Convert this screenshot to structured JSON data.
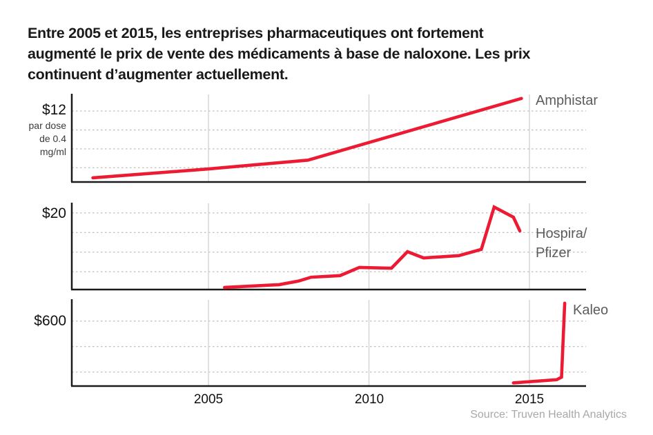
{
  "title": {
    "lines": [
      "Entre 2005 et 2015, les entreprises pharmaceutiques ont fortement",
      "augmenté le prix de vente des médicaments à base de naloxone. Les prix",
      "continuent d’augmenter actuellement."
    ]
  },
  "x_axis": {
    "tick_labels": [
      "2005",
      "2010",
      "2015"
    ]
  },
  "source": "Source: Truven Health Analytics",
  "colors": {
    "line_red": "#ed1a33",
    "series_label": "#5c5c5c",
    "title_text": "#191919",
    "axis": "#1a1a1a",
    "dashed_gridline": "#c3c3c3",
    "year_gridline": "#d6d6d6",
    "tick_label": "#111111",
    "source_text": "#a8a8a8"
  },
  "chart_data": [
    {
      "type": "line",
      "series_label": "Amphistar",
      "y_axis_label": "$12",
      "y_axis_sublabel_lines": [
        "par dose",
        "de 0.4",
        "mg/ml"
      ],
      "y_gridline_values": [
        3,
        6,
        9,
        12
      ],
      "x_gridline_years": [
        2005,
        2010,
        2015
      ],
      "x_years": [
        2001.4,
        2005,
        2008.1,
        2014.75
      ],
      "values": [
        1.4,
        2.8,
        4.2,
        14.0
      ],
      "xlim": [
        2000.7,
        2016.8
      ],
      "ylim": [
        0,
        14.7
      ],
      "grid": "dashed-horizontal, solid vertical at 5-year marks",
      "legend_position": "right-of-line-end"
    },
    {
      "type": "line",
      "series_label": "Hospira/Pfizer",
      "series_label_lines": [
        "Hospira/",
        "Pfizer"
      ],
      "y_axis_label": "$20",
      "y_gridline_values": [
        5,
        10,
        15,
        20
      ],
      "x_gridline_years": [
        2005,
        2010,
        2015
      ],
      "x_years": [
        2005.5,
        2007.2,
        2007.8,
        2008.2,
        2009.1,
        2009.7,
        2010.7,
        2011.2,
        2011.7,
        2012.8,
        2013.5,
        2013.9,
        2014.5,
        2014.7
      ],
      "values": [
        1.0,
        1.7,
        2.6,
        3.6,
        4.0,
        6.1,
        5.9,
        10.1,
        8.5,
        9.1,
        10.7,
        21.5,
        18.9,
        15.4
      ],
      "xlim": [
        2000.7,
        2016.8
      ],
      "ylim": [
        0,
        22.6
      ],
      "grid": "dashed-horizontal, solid vertical at 5-year marks",
      "legend_position": "right-of-line-end"
    },
    {
      "type": "line",
      "series_label": "Kaleo",
      "y_axis_label": "$600",
      "y_gridline_values": [
        200,
        400,
        600
      ],
      "x_gridline_years": [
        2005,
        2010,
        2015
      ],
      "x_years": [
        2014.5,
        2015.85,
        2016.0,
        2016.1
      ],
      "values": [
        115,
        140,
        160,
        740
      ],
      "xlim": [
        2000.7,
        2016.8
      ],
      "ylim": [
        90,
        770
      ],
      "note": "final spike is truncated at the top of the panel",
      "grid": "dashed-horizontal, solid vertical at 5-year marks",
      "legend_position": "right-of-line-end"
    }
  ]
}
